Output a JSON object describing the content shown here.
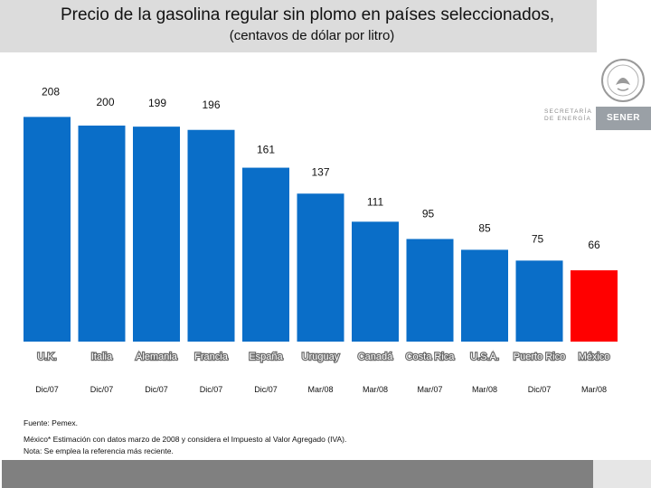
{
  "header": {
    "title": "Precio de la gasolina regular sin plomo en países seleccionados,",
    "subtitle": "(centavos de dólar por litro)"
  },
  "logo": {
    "secretaria_line1": "SECRETARÍA",
    "secretaria_line2": "DE ENERGÍA",
    "brand": "SENER"
  },
  "colors": {
    "bar": "#0A6EC8",
    "highlight": "#FF0000",
    "header_bg": "#DCDCDC",
    "bottom_bar": "#808080"
  },
  "chart_data": {
    "type": "bar",
    "title": "Precio de la gasolina regular sin plomo en países seleccionados,",
    "subtitle": "(centavos de dólar por litro)",
    "categories": [
      "U.K.",
      "Italia",
      "Alemania",
      "Francia",
      "España",
      "Uruguay",
      "Canadá",
      "Costa Rica",
      "U.S.A.",
      "Puerto Rico",
      "México"
    ],
    "values": [
      208,
      200,
      199,
      196,
      161,
      137,
      111,
      95,
      85,
      75,
      66
    ],
    "dates": [
      "Dic/07",
      "Dic/07",
      "Dic/07",
      "Dic/07",
      "Dic/07",
      "Mar/08",
      "Mar/08",
      "Mar/07",
      "Mar/08",
      "Dic/07",
      "Mar/08"
    ],
    "highlight_category": "México",
    "ylim": [
      0,
      210
    ],
    "xlabel": "",
    "ylabel": ""
  },
  "footnotes": {
    "source": "Fuente: Pemex.",
    "note1": "México* Estimación con datos marzo de 2008 y considera el Impuesto al Valor Agregado (IVA).",
    "note2": "Nota: Se emplea la referencia más reciente."
  }
}
